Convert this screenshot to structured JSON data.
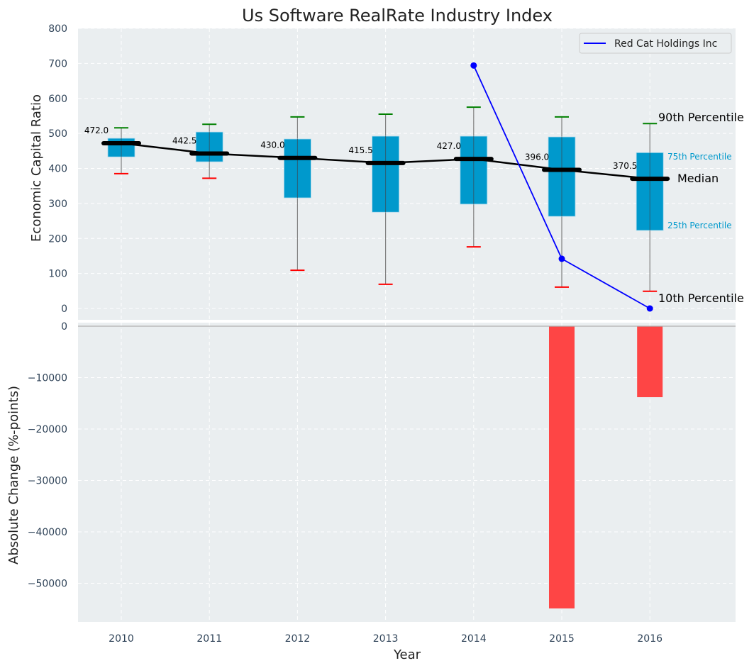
{
  "chart_data": [
    {
      "type": "box",
      "title": "Us Software RealRate Industry Index",
      "xlabel": "",
      "ylabel": "Economic Capital Ratio",
      "ylim": [
        0,
        800
      ],
      "yticks": [
        0,
        100,
        200,
        300,
        400,
        500,
        600,
        700,
        800
      ],
      "grid": true,
      "categories": [
        "2010",
        "2011",
        "2012",
        "2013",
        "2014",
        "2015",
        "2016"
      ],
      "percentiles": {
        "p10": [
          385,
          372,
          109,
          69,
          176,
          61,
          49
        ],
        "p25": [
          433,
          419,
          316,
          275,
          298,
          263,
          223
        ],
        "median": [
          472.0,
          442.5,
          430.0,
          415.5,
          427.0,
          396.0,
          370.5
        ],
        "p75": [
          486,
          504,
          484,
          492,
          492,
          490,
          445
        ],
        "p90": [
          516,
          526,
          547,
          555,
          575,
          547,
          528
        ]
      },
      "median_labels": [
        "472.0",
        "442.5",
        "430.0",
        "415.5",
        "427.0",
        "396.0",
        "370.5"
      ],
      "series": [
        {
          "name": "Red Cat Holdings Inc",
          "type": "line",
          "color": "#0000ff",
          "x": [
            "2014",
            "2015",
            "2016"
          ],
          "values": [
            694,
            142,
            0
          ]
        }
      ],
      "legend": {
        "entries": [
          "Red Cat Holdings Inc"
        ],
        "placement": "top-right"
      },
      "annotations": {
        "p90": "90th Percentile",
        "p75": "75th Percentile",
        "median": "Median",
        "p25": "25th Percentile",
        "p10": "10th Percentile"
      },
      "colors": {
        "box": "#0099cc",
        "median": "#000000",
        "p90_cap": "#008000",
        "p10_cap": "#ff0000",
        "whisker": "#808080",
        "background": "#eaeef0",
        "percentile_text": "#0099cc"
      }
    },
    {
      "type": "bar",
      "xlabel": "Year",
      "ylabel": "Absolute Change (%-points)",
      "ylim": [
        -58000,
        0
      ],
      "yticks": [
        0,
        -10000,
        -20000,
        -30000,
        -40000,
        -50000
      ],
      "ytick_labels": [
        "0",
        "−10000",
        "−20000",
        "−30000",
        "−40000",
        "−50000"
      ],
      "grid": true,
      "categories": [
        "2010",
        "2011",
        "2012",
        "2013",
        "2014",
        "2015",
        "2016"
      ],
      "values": [
        null,
        null,
        null,
        null,
        null,
        -54900,
        -13800
      ],
      "color": "#ff3b3b"
    }
  ]
}
